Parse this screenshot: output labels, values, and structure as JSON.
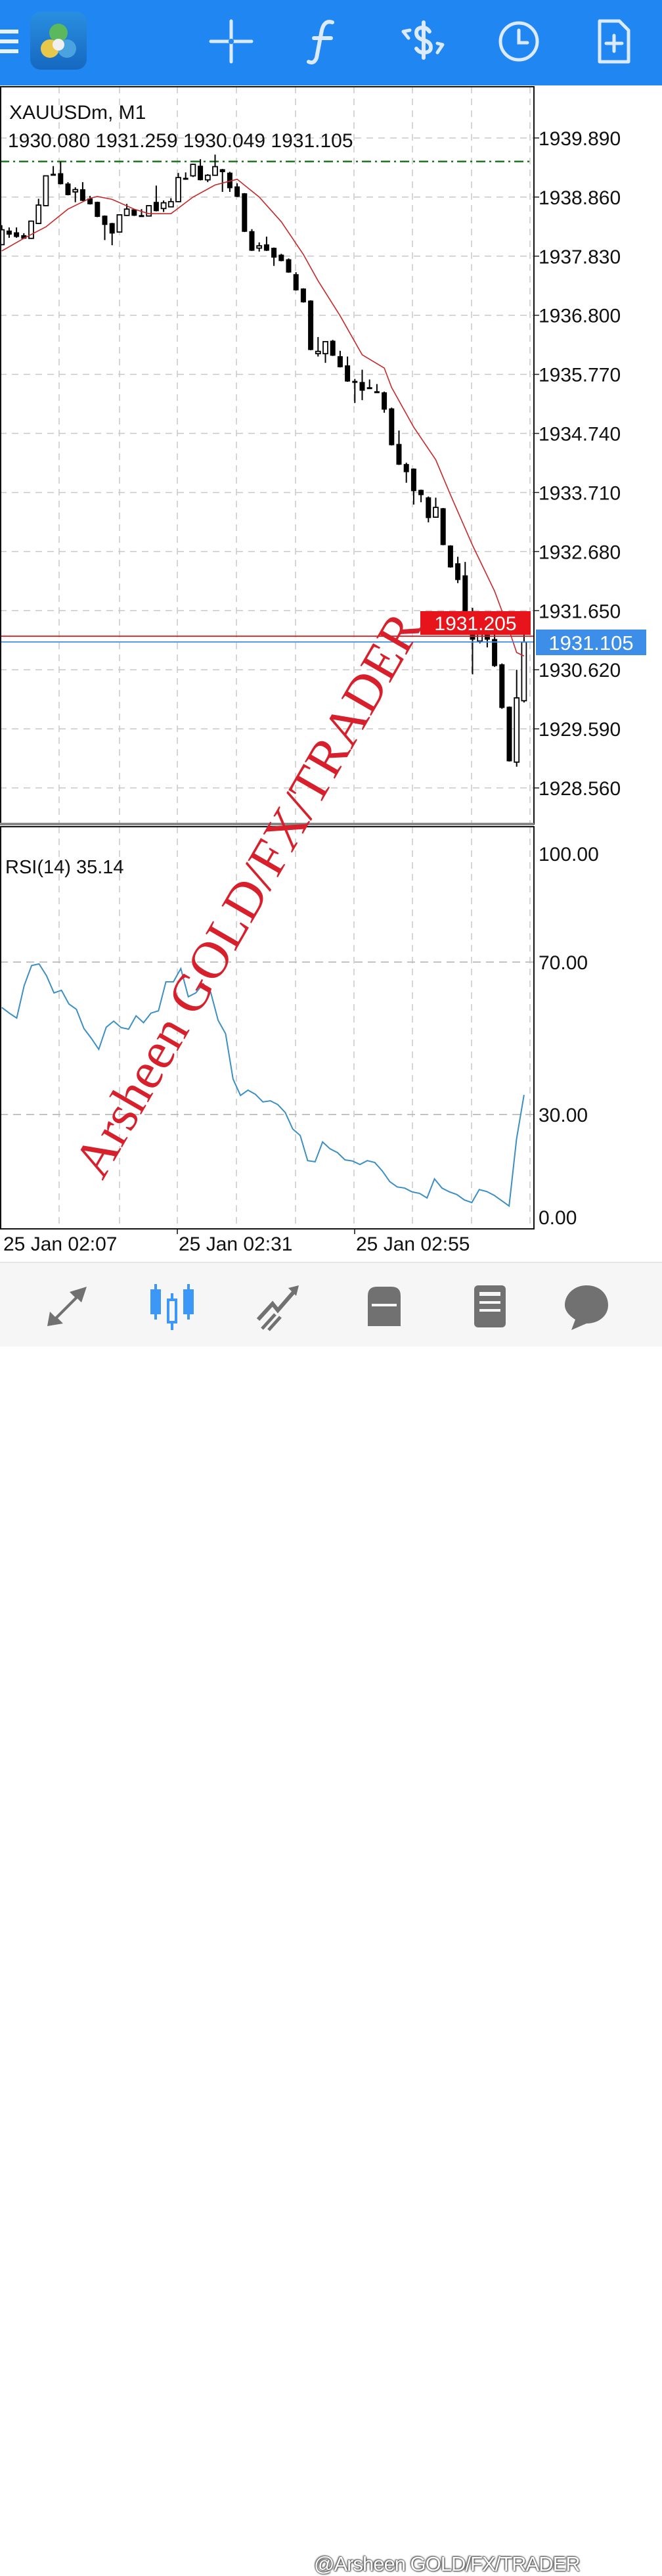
{
  "header": {
    "icons": [
      "menu-icon",
      "metatrader-logo",
      "crosshair-icon",
      "indicators-f-icon",
      "symbol-change-dollar-icon",
      "timeframe-clock-icon",
      "new-order-file-plus-icon"
    ],
    "color": "#1f86f2"
  },
  "chart": {
    "symbol_title": "XAUUSDm, M1",
    "ohlc_line": "1930.080 1931.259 1930.049 1931.105",
    "bid_label": "1931.105",
    "ask_label": "1931.205",
    "bid_price": 1931.105,
    "ask_price": 1931.205,
    "order_line_price": 1939.48,
    "colors": {
      "bid": "#3c8ee8",
      "ask": "#e8141c",
      "ma": "#c8282a",
      "rsi": "#3b8fc4",
      "order_line": "#1e7a1e",
      "watermark": "#d8202c"
    },
    "time_labels": [
      "25 Jan 02:07",
      "25 Jan 02:31",
      "25 Jan 02:55"
    ],
    "rsi_label": "RSI(14) 35.14"
  },
  "chart_data": [
    {
      "type": "candlestick",
      "title": "XAUUSDm, M1",
      "y_ticks": [
        "1939.890",
        "1938.860",
        "1937.830",
        "1936.800",
        "1935.770",
        "1934.740",
        "1933.710",
        "1932.680",
        "1931.650",
        "1930.620",
        "1929.590",
        "1928.560"
      ],
      "ohlc": [
        [
          1938.03,
          1938.37,
          1938.02,
          1938.29
        ],
        [
          1938.27,
          1938.33,
          1938.15,
          1938.21
        ],
        [
          1938.24,
          1938.33,
          1938.15,
          1938.17
        ],
        [
          1938.19,
          1938.23,
          1938.13,
          1938.14
        ],
        [
          1938.14,
          1938.45,
          1938.13,
          1938.44
        ],
        [
          1938.4,
          1938.83,
          1938.39,
          1938.72
        ],
        [
          1938.71,
          1939.23,
          1938.7,
          1939.23
        ],
        [
          1939.26,
          1939.4,
          1939.25,
          1939.25
        ],
        [
          1939.27,
          1939.48,
          1939.08,
          1939.09
        ],
        [
          1939.09,
          1939.12,
          1938.89,
          1938.9
        ],
        [
          1938.95,
          1939.03,
          1938.77,
          1938.99
        ],
        [
          1938.99,
          1939.12,
          1938.79,
          1938.8
        ],
        [
          1938.83,
          1938.88,
          1938.73,
          1938.74
        ],
        [
          1938.77,
          1938.78,
          1938.51,
          1938.52
        ],
        [
          1938.53,
          1938.54,
          1938.11,
          1938.38
        ],
        [
          1938.4,
          1938.41,
          1938.02,
          1938.23
        ],
        [
          1938.25,
          1938.56,
          1938.24,
          1938.55
        ],
        [
          1938.54,
          1938.74,
          1938.53,
          1938.65
        ],
        [
          1938.64,
          1938.65,
          1938.53,
          1938.54
        ],
        [
          1938.54,
          1938.65,
          1938.53,
          1938.53
        ],
        [
          1938.53,
          1938.72,
          1938.52,
          1938.71
        ],
        [
          1938.77,
          1939.06,
          1938.61,
          1938.62
        ],
        [
          1938.66,
          1938.8,
          1938.6,
          1938.76
        ],
        [
          1938.69,
          1938.84,
          1938.68,
          1938.78
        ],
        [
          1938.78,
          1939.28,
          1938.77,
          1939.2
        ],
        [
          1939.19,
          1939.29,
          1939.18,
          1939.19
        ],
        [
          1939.23,
          1939.44,
          1939.21,
          1939.43
        ],
        [
          1939.4,
          1939.52,
          1939.15,
          1939.16
        ],
        [
          1939.16,
          1939.26,
          1939.12,
          1939.24
        ],
        [
          1939.24,
          1939.6,
          1939.23,
          1939.39
        ],
        [
          1939.34,
          1939.35,
          1938.95,
          1939.3
        ],
        [
          1939.28,
          1939.3,
          1938.95,
          1939.02
        ],
        [
          1939.04,
          1939.1,
          1938.86,
          1938.87
        ],
        [
          1938.92,
          1938.93,
          1938.25,
          1938.26
        ],
        [
          1938.26,
          1938.3,
          1937.92,
          1937.93
        ],
        [
          1937.97,
          1938.07,
          1937.91,
          1938.01
        ],
        [
          1938.03,
          1938.17,
          1937.92,
          1937.93
        ],
        [
          1937.97,
          1937.98,
          1937.66,
          1937.81
        ],
        [
          1937.85,
          1937.87,
          1937.74,
          1937.75
        ],
        [
          1937.77,
          1937.79,
          1937.54,
          1937.55
        ],
        [
          1937.51,
          1937.55,
          1937.23,
          1937.24
        ],
        [
          1937.26,
          1937.27,
          1937.02,
          1937.03
        ],
        [
          1937.05,
          1937.06,
          1936.19,
          1936.2
        ],
        [
          1936.13,
          1936.42,
          1936.08,
          1936.17
        ],
        [
          1936.13,
          1936.35,
          1935.97,
          1936.34
        ],
        [
          1936.35,
          1936.37,
          1936.09,
          1936.1
        ],
        [
          1936.08,
          1936.18,
          1935.89,
          1935.9
        ],
        [
          1935.92,
          1936.08,
          1935.64,
          1935.65
        ],
        [
          1935.65,
          1935.69,
          1935.27,
          1935.64
        ],
        [
          1935.63,
          1935.85,
          1935.32,
          1935.49
        ],
        [
          1935.54,
          1935.68,
          1935.53,
          1935.53
        ],
        [
          1935.47,
          1935.6,
          1935.46,
          1935.46
        ],
        [
          1935.45,
          1935.47,
          1935.1,
          1935.16
        ],
        [
          1935.17,
          1935.19,
          1934.53,
          1934.54
        ],
        [
          1934.55,
          1934.79,
          1934.19,
          1934.2
        ],
        [
          1934.2,
          1934.23,
          1933.88,
          1934.07
        ],
        [
          1934.12,
          1934.13,
          1933.5,
          1933.74
        ],
        [
          1933.75,
          1933.76,
          1933.54,
          1933.67
        ],
        [
          1933.62,
          1933.64,
          1933.19,
          1933.27
        ],
        [
          1933.28,
          1933.62,
          1933.27,
          1933.45
        ],
        [
          1933.43,
          1933.44,
          1932.79,
          1932.8
        ],
        [
          1932.78,
          1932.79,
          1932.4,
          1932.41
        ],
        [
          1932.47,
          1932.59,
          1932.13,
          1932.19
        ],
        [
          1932.26,
          1932.5,
          1931.49,
          1931.5
        ],
        [
          1931.5,
          1931.7,
          1930.54,
          1931.15
        ],
        [
          1931.12,
          1931.38,
          1931.08,
          1931.29
        ],
        [
          1931.38,
          1931.41,
          1931.01,
          1931.15
        ],
        [
          1931.15,
          1931.26,
          1930.67,
          1930.69
        ],
        [
          1930.71,
          1930.73,
          1929.94,
          1929.96
        ],
        [
          1929.97,
          1929.98,
          1929.02,
          1929.03
        ],
        [
          1929.01,
          1930.62,
          1928.93,
          1930.13
        ],
        [
          1930.08,
          1931.259,
          1930.049,
          1931.105
        ]
      ],
      "moving_average": [
        [
          0,
          1937.92
        ],
        [
          3,
          1938.14
        ],
        [
          6,
          1938.34
        ],
        [
          9,
          1938.65
        ],
        [
          12,
          1938.84
        ],
        [
          13,
          1938.87
        ],
        [
          15,
          1938.82
        ],
        [
          18,
          1938.65
        ],
        [
          20,
          1938.57
        ],
        [
          23,
          1938.57
        ],
        [
          26,
          1938.86
        ],
        [
          29,
          1939.07
        ],
        [
          32,
          1939.17
        ],
        [
          35,
          1938.86
        ],
        [
          38,
          1938.43
        ],
        [
          41,
          1937.86
        ],
        [
          43,
          1937.4
        ],
        [
          46,
          1936.79
        ],
        [
          49,
          1936.11
        ],
        [
          52,
          1935.88
        ],
        [
          53,
          1935.54
        ],
        [
          56,
          1934.85
        ],
        [
          59,
          1934.28
        ],
        [
          61,
          1933.67
        ],
        [
          64,
          1932.79
        ],
        [
          67,
          1931.99
        ],
        [
          69,
          1931.3
        ],
        [
          70,
          1930.92
        ],
        [
          71,
          1930.86
        ]
      ],
      "x_ticks": [
        "25 Jan 02:07",
        "25 Jan 02:31",
        "25 Jan 02:55"
      ]
    },
    {
      "type": "line",
      "title": "RSI(14) 35.14",
      "ylim": [
        0,
        100
      ],
      "y_ticks": [
        "100.00",
        "70.00",
        "30.00",
        "0.00"
      ],
      "levels": [
        70,
        30
      ],
      "values": [
        58.1,
        56.6,
        55.3,
        63.8,
        69.1,
        69.5,
        66.4,
        61.9,
        62.6,
        59.0,
        57.6,
        52.6,
        50.0,
        47.1,
        52.9,
        54.5,
        52.8,
        52.4,
        55.9,
        54.1,
        56.6,
        57.2,
        64.8,
        64.8,
        68.3,
        60.9,
        61.9,
        64.3,
        62.1,
        54.7,
        51.2,
        39.3,
        35.0,
        36.4,
        35.3,
        33.3,
        33.6,
        32.6,
        30.5,
        26.2,
        24.5,
        17.9,
        17.6,
        22.8,
        21.0,
        20.0,
        18.1,
        17.8,
        16.9,
        17.9,
        17.4,
        15.2,
        12.4,
        11.0,
        10.7,
        9.7,
        9.3,
        8.1,
        13.1,
        10.7,
        9.7,
        9.0,
        7.6,
        6.9,
        10.3,
        9.8,
        8.8,
        7.4,
        6.0,
        23.6,
        35.14
      ]
    }
  ],
  "watermark": {
    "text": "Arsheen GOLD/FX/TRADER",
    "bottom_text": "@Arsheen GOLD/FX/TRADER"
  },
  "bottom_nav": {
    "items": [
      "quotes-icon",
      "chart-icon",
      "trade-icon",
      "history-icon",
      "news-icon",
      "messages-icon"
    ],
    "active": "chart-icon",
    "active_color": "#3d97f7",
    "inactive_color": "#717171"
  }
}
